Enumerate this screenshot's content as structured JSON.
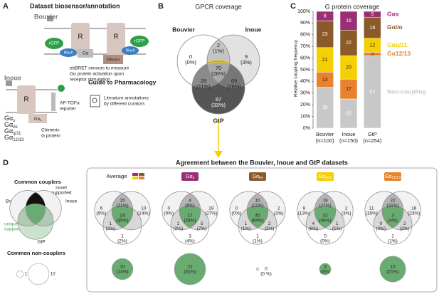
{
  "panel_a": {
    "letter": "A",
    "title": "Dataset biosensor/annotation",
    "bouvier": {
      "name": "Bouvier",
      "receptors": [
        "R",
        "R"
      ],
      "rgfp": [
        "rGFP",
        "rGFP"
      ],
      "rluc": [
        "RlucII",
        "RlucII"
      ],
      "galpha": "Gα",
      "effector": "Effector",
      "caption": [
        "ebBRET sensors to measure",
        "Gα protein activation upon",
        "receptor stimulation"
      ]
    },
    "inoue": {
      "name": "Inoue",
      "receptor": "R",
      "chimera": {
        "main": "Gα",
        "sub": "s"
      },
      "reporter": [
        "AP-TGFα",
        "reporter"
      ],
      "chimera_caption": [
        "Chimeric",
        "G protein"
      ],
      "families": [
        {
          "main": "Gα",
          "sub": "s"
        },
        {
          "main": "Gα",
          "sub": "i/o"
        },
        {
          "main": "Gα",
          "sub": "q/11"
        },
        {
          "main": "Gα",
          "sub": "12/13"
        }
      ]
    },
    "gtp": {
      "name": "Guide to Pharmacology",
      "caption": [
        "Literature annotations",
        "by different curators"
      ]
    }
  },
  "panel_b": {
    "letter": "B",
    "title": "GPCR coverage",
    "sets": [
      "Bouvier",
      "Inoue",
      "GtP"
    ],
    "regions": {
      "left": {
        "count": "0",
        "percent": "(0%)"
      },
      "top": {
        "count": "2",
        "percent": "(1%)"
      },
      "right": {
        "count": "9",
        "percent": "(3%)"
      },
      "center": {
        "count": "70",
        "percent": "(26%)"
      },
      "bg": {
        "count": "28",
        "percent": "(11%)"
      },
      "ig": {
        "count": "69",
        "percent": "(26%)"
      },
      "g": {
        "count": "87",
        "percent": "(33%)"
      }
    }
  },
  "chart_data": {
    "type": "bar",
    "stacked": true,
    "letter": "C",
    "title": "G protein coverage",
    "ylabel": "Relative coupling frequency",
    "categories": [
      "Bouvier",
      "Inoue",
      "GtP"
    ],
    "n_labels": [
      "(n=100)",
      "(n=150)",
      "(n=254)"
    ],
    "ylim": [
      0,
      100
    ],
    "yticks": [
      {
        "value": 0,
        "label": "0%"
      },
      {
        "value": 10,
        "label": "10%"
      },
      {
        "value": 20,
        "label": "20%"
      },
      {
        "value": 30,
        "label": "30%"
      },
      {
        "value": 40,
        "label": "40%"
      },
      {
        "value": 50,
        "label": "50%"
      },
      {
        "value": 60,
        "label": "60%"
      },
      {
        "value": 70,
        "label": "70%"
      },
      {
        "value": 80,
        "label": "80%"
      },
      {
        "value": 90,
        "label": "90%"
      },
      {
        "value": 100,
        "label": "100%"
      }
    ],
    "series": [
      {
        "name": "Non-coupling",
        "color": "#c8c8c8",
        "values": [
          35,
          25,
          62
        ]
      },
      {
        "name": "Gα12/13",
        "color": "#e8822e",
        "values": [
          13,
          17,
          3
        ]
      },
      {
        "name": "Gαq/11",
        "color": "#f5d000",
        "values": [
          21,
          20,
          12
        ]
      },
      {
        "name": "Gαi/o",
        "color": "#8b5a2b",
        "values": [
          23,
          22,
          18
        ]
      },
      {
        "name": "Gαs",
        "color": "#9b2f75",
        "values": [
          8,
          16,
          5
        ]
      }
    ]
  },
  "panel_d": {
    "letter": "D",
    "title": "Agreement between the Bouvier, Inoue and GtP datasets",
    "legend": {
      "couplers": "Common couplers",
      "novel": [
        "novel",
        "supported"
      ],
      "unique": [
        "unique",
        "supported"
      ],
      "sets": [
        "Bouvier",
        "Inoue",
        "GtP"
      ],
      "noncouplers": "Common non-couplers",
      "scale": [
        1,
        10
      ]
    },
    "venns": [
      {
        "header": {
          "label": "Average"
        },
        "regions": {
          "left": {
            "count": 6,
            "percent": "(9%)"
          },
          "top": {
            "count": 15,
            "percent": "(21%)"
          },
          "right": {
            "count": 10,
            "percent": "(14%)"
          },
          "center": {
            "count": 24,
            "percent": "(35%)"
          },
          "bg": {
            "count": 1,
            "percent": "(2%)"
          },
          "g": {
            "count": 1,
            "percent": "(2%)"
          }
        },
        "noncoupling": {
          "count": 10,
          "percent": "(14%)"
        }
      },
      {
        "header": {
          "main": "Gα",
          "sub": "s",
          "color": "#9b2f75"
        },
        "regions": {
          "left": {
            "count": 0,
            "percent": "(0%)"
          },
          "top": {
            "count": 4,
            "percent": "(6%)"
          },
          "right": {
            "count": 19,
            "percent": "(27%)"
          },
          "center": {
            "count": 17,
            "percent": "(24%)"
          },
          "bg": {
            "count": 1,
            "percent": "(2%)"
          },
          "ig": {
            "count": 5,
            "percent": "(7%)"
          },
          "g": {
            "count": 3,
            "percent": "(4%)"
          }
        },
        "noncoupling": {
          "count": 22,
          "percent": "(31%)"
        }
      },
      {
        "header": {
          "main": "Gα",
          "sub": "i/o",
          "color": "#8b5a2b"
        },
        "regions": {
          "left": {
            "count": 0,
            "percent": "(0%)"
          },
          "top": {
            "count": 15,
            "percent": "(21%)"
          },
          "right": {
            "count": 2,
            "percent": "(3%)"
          },
          "center": {
            "count": 45,
            "percent": "(64%)"
          },
          "bg": {
            "count": 1,
            "percent": "(1%)"
          },
          "ig": {
            "count": 2,
            "percent": "(3%)"
          },
          "g": {
            "count": 1,
            "percent": "(1%)"
          }
        },
        "noncoupling": {
          "count": 0,
          "percent": "(0 %)"
        }
      },
      {
        "header": {
          "main": "Gα",
          "sub": "q/11",
          "color": "#f5d000"
        },
        "regions": {
          "left": {
            "count": 9,
            "percent": "(13%)"
          },
          "top": {
            "count": 19,
            "percent": "(27%)"
          },
          "right": {
            "count": 2,
            "percent": "(3%)"
          },
          "center": {
            "count": 32,
            "percent": "(46%)"
          },
          "bg": {
            "count": 4,
            "percent": "(6%)"
          },
          "ig": {
            "count": 1,
            "percent": "(1%)"
          },
          "g": {
            "count": 0,
            "percent": "(0%)"
          }
        },
        "noncoupling": {
          "count": 3,
          "percent": "(4%)"
        }
      },
      {
        "header": {
          "main": "Gα",
          "sub": "12/13",
          "color": "#e8822e"
        },
        "regions": {
          "left": {
            "count": 11,
            "percent": "(16%)"
          },
          "top": {
            "count": 22,
            "percent": "(31%)"
          },
          "right": {
            "count": 16,
            "percent": "(23%)"
          },
          "center": {
            "count": 3,
            "percent": "(4%)"
          },
          "bg": {
            "count": 0,
            "percent": "(0%)"
          },
          "ig": {
            "count": 2,
            "percent": "(3%)"
          },
          "g": {
            "count": 1,
            "percent": "(1%)"
          }
        },
        "noncoupling": {
          "count": 15,
          "percent": "(21%)"
        }
      }
    ]
  }
}
